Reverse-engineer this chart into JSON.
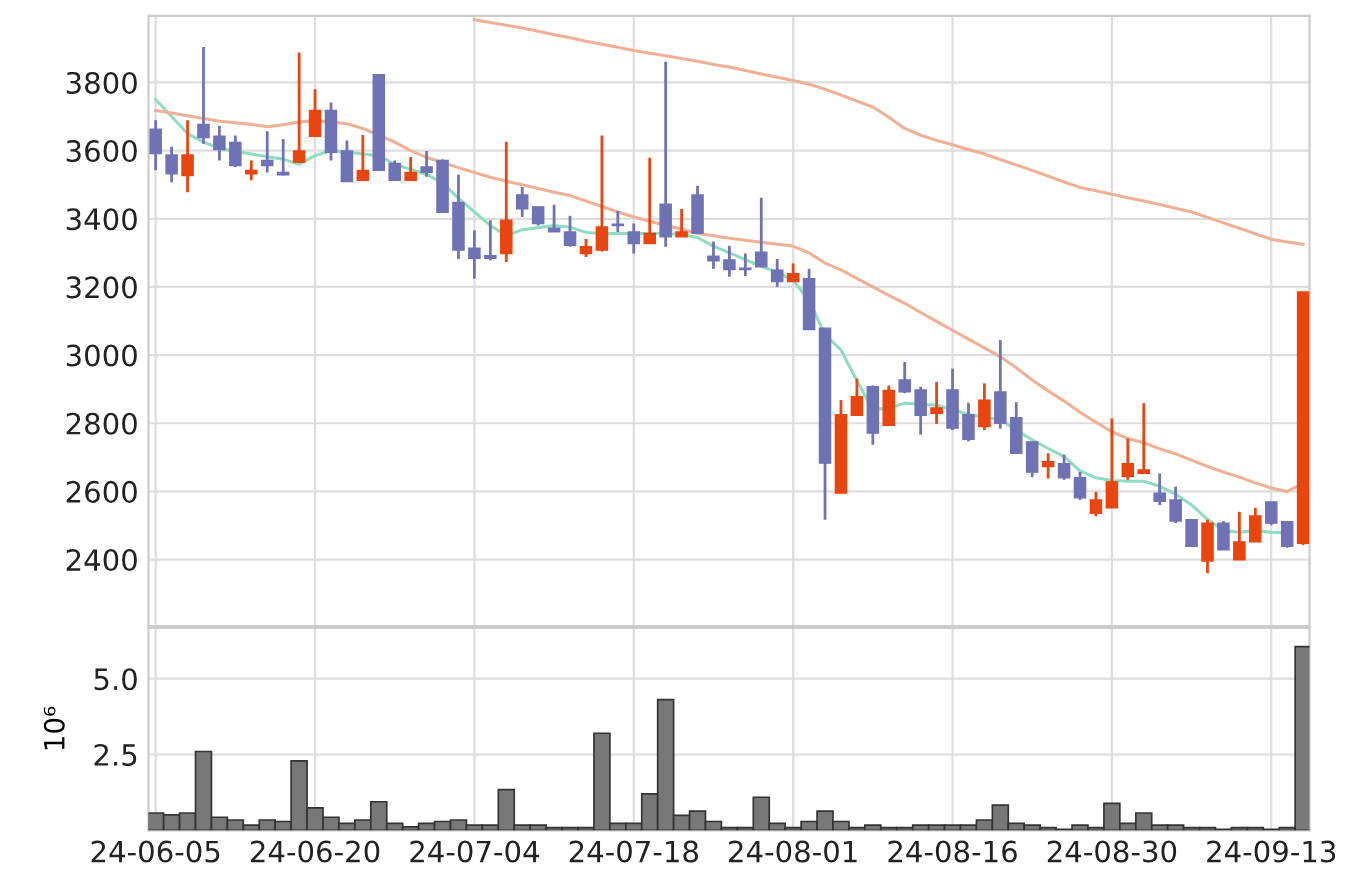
{
  "chart_data": [
    {
      "type": "candlestick",
      "categories": [
        null,
        null,
        null,
        null,
        null,
        null,
        null,
        null,
        null,
        null,
        null,
        null,
        null,
        null,
        null,
        null,
        null,
        null,
        null,
        null,
        null,
        null,
        null,
        null,
        null,
        null,
        null,
        null,
        null,
        null,
        null,
        null,
        null,
        null,
        null,
        null,
        null,
        null,
        null,
        null,
        null,
        null,
        null,
        null,
        null,
        null,
        null,
        null,
        null,
        null,
        null,
        null,
        null,
        null,
        null,
        null,
        null,
        null,
        null,
        null,
        null,
        null,
        null,
        null,
        null,
        null,
        null,
        null,
        null,
        null,
        null,
        null,
        null
      ],
      "ohlc": [
        [
          3663,
          3689,
          3542,
          3591
        ],
        [
          3587,
          3611,
          3507,
          3532
        ],
        [
          3527,
          3689,
          3478,
          3587
        ],
        [
          3677,
          3904,
          3620,
          3638
        ],
        [
          3642,
          3673,
          3571,
          3603
        ],
        [
          3624,
          3644,
          3552,
          3556
        ],
        [
          3532,
          3571,
          3513,
          3542
        ],
        [
          3571,
          3657,
          3536,
          3556
        ],
        [
          3536,
          3634,
          3527,
          3529
        ],
        [
          3566,
          3888,
          3566,
          3599
        ],
        [
          3642,
          3780,
          3642,
          3718
        ],
        [
          3718,
          3741,
          3571,
          3595
        ],
        [
          3599,
          3630,
          3509,
          3509
        ],
        [
          3513,
          3646,
          3513,
          3542
        ],
        [
          3823,
          3823,
          3542,
          3542
        ],
        [
          3562,
          3571,
          3513,
          3513
        ],
        [
          3513,
          3581,
          3513,
          3536
        ],
        [
          3552,
          3599,
          3523,
          3536
        ],
        [
          3571,
          3575,
          3419,
          3419
        ],
        [
          3448,
          3529,
          3282,
          3308
        ],
        [
          3314,
          3366,
          3224,
          3284
        ],
        [
          3292,
          3396,
          3278,
          3284
        ],
        [
          3298,
          3626,
          3273,
          3396
        ],
        [
          3470,
          3493,
          3405,
          3429
        ],
        [
          3435,
          3435,
          3380,
          3386
        ],
        [
          3372,
          3441,
          3362,
          3362
        ],
        [
          3361,
          3409,
          3318,
          3322
        ],
        [
          3298,
          3341,
          3288,
          3318
        ],
        [
          3308,
          3644,
          3304,
          3376
        ],
        [
          3384,
          3423,
          3361,
          3380
        ],
        [
          3361,
          3386,
          3298,
          3327
        ],
        [
          3327,
          3579,
          3327,
          3357
        ],
        [
          3443,
          3861,
          3318,
          3347
        ],
        [
          3347,
          3429,
          3347,
          3361
        ],
        [
          3470,
          3497,
          3357,
          3357
        ],
        [
          3290,
          3333,
          3253,
          3277
        ],
        [
          3279,
          3321,
          3230,
          3251
        ],
        [
          3255,
          3298,
          3232,
          3251
        ],
        [
          3302,
          3462,
          3259,
          3259
        ],
        [
          3249,
          3282,
          3200,
          3216
        ],
        [
          3216,
          3269,
          3216,
          3239
        ],
        [
          3224,
          3253,
          3075,
          3075
        ],
        [
          3079,
          3079,
          2517,
          2683
        ],
        [
          2595,
          2868,
          2595,
          2825
        ],
        [
          2823,
          2931,
          2823,
          2878
        ],
        [
          2907,
          2911,
          2737,
          2771
        ],
        [
          2794,
          2911,
          2794,
          2896
        ],
        [
          2927,
          2980,
          2888,
          2892
        ],
        [
          2898,
          2907,
          2767,
          2823
        ],
        [
          2829,
          2921,
          2798,
          2845
        ],
        [
          2898,
          2960,
          2780,
          2786
        ],
        [
          2825,
          2860,
          2747,
          2753
        ],
        [
          2790,
          2917,
          2780,
          2868
        ],
        [
          2892,
          3044,
          2784,
          2800
        ],
        [
          2816,
          2862,
          2712,
          2712
        ],
        [
          2745,
          2745,
          2642,
          2657
        ],
        [
          2673,
          2712,
          2638,
          2687
        ],
        [
          2681,
          2708,
          2634,
          2640
        ],
        [
          2640,
          2657,
          2575,
          2581
        ],
        [
          2536,
          2599,
          2527,
          2575
        ],
        [
          2552,
          2814,
          2552,
          2628
        ],
        [
          2644,
          2755,
          2634,
          2681
        ],
        [
          2653,
          2859,
          2653,
          2663
        ],
        [
          2595,
          2653,
          2560,
          2571
        ],
        [
          2575,
          2614,
          2507,
          2513
        ],
        [
          2517,
          2517,
          2439,
          2439
        ],
        [
          2396,
          2517,
          2360,
          2507
        ],
        [
          2507,
          2513,
          2429,
          2429
        ],
        [
          2399,
          2540,
          2399,
          2452
        ],
        [
          2452,
          2552,
          2452,
          2528
        ],
        [
          2569,
          2569,
          2501,
          2507
        ],
        [
          2511,
          2511,
          2435,
          2439
        ],
        [
          2448,
          3185,
          2443,
          3185
        ]
      ],
      "colors": [
        "#6f72b5",
        "#6f72b5",
        "#e8450f",
        "#6f72b5",
        "#6f72b5",
        "#6f72b5",
        "#e8450f",
        "#6f72b5",
        "#6f72b5",
        "#e8450f",
        "#e8450f",
        "#6f72b5",
        "#6f72b5",
        "#e8450f",
        "#6f72b5",
        "#6f72b5",
        "#e8450f",
        "#6f72b5",
        "#6f72b5",
        "#6f72b5",
        "#6f72b5",
        "#6f72b5",
        "#e8450f",
        "#6f72b5",
        "#6f72b5",
        "#6f72b5",
        "#6f72b5",
        "#e8450f",
        "#e8450f",
        "#6f72b5",
        "#6f72b5",
        "#e8450f",
        "#6f72b5",
        "#e8450f",
        "#6f72b5",
        "#6f72b5",
        "#6f72b5",
        "#6f72b5",
        "#6f72b5",
        "#6f72b5",
        "#e8450f",
        "#6f72b5",
        "#6f72b5",
        "#e8450f",
        "#e8450f",
        "#6f72b5",
        "#e8450f",
        "#6f72b5",
        "#6f72b5",
        "#e8450f",
        "#6f72b5",
        "#6f72b5",
        "#e8450f",
        "#6f72b5",
        "#6f72b5",
        "#6f72b5",
        "#e8450f",
        "#6f72b5",
        "#6f72b5",
        "#e8450f",
        "#e8450f",
        "#e8450f",
        "#e8450f",
        "#6f72b5",
        "#6f72b5",
        "#6f72b5",
        "#e8450f",
        "#6f72b5",
        "#e8450f",
        "#e8450f",
        "#6f72b5",
        "#6f72b5",
        "#e8450f"
      ],
      "series": [
        {
          "type": "line",
          "color": "#8fdcc0",
          "values": [
            3750,
            3700,
            3650,
            3625,
            3607,
            3598,
            3590,
            3582,
            3575,
            3560,
            3585,
            3600,
            3596,
            3590,
            3585,
            3560,
            3545,
            3530,
            3505,
            3460,
            3420,
            3380,
            3350,
            3368,
            3374,
            3380,
            3375,
            3360,
            3357,
            3357,
            3357,
            3357,
            3357,
            3354,
            3345,
            3320,
            3300,
            3280,
            3260,
            3243,
            3220,
            3160,
            3060,
            3015,
            2925,
            2840,
            2845,
            2859,
            2856,
            2853,
            2840,
            2826,
            2818,
            2810,
            2780,
            2751,
            2726,
            2702,
            2660,
            2640,
            2632,
            2630,
            2630,
            2615,
            2592,
            2560,
            2518,
            2485,
            2480,
            2485,
            2480,
            2478,
            null
          ]
        },
        {
          "type": "line",
          "color": "#f0b095",
          "values": [
            3718,
            3710,
            3702,
            3694,
            3686,
            3682,
            3677,
            3670,
            3676,
            3684,
            3688,
            3684,
            3679,
            3665,
            3645,
            3625,
            3600,
            3580,
            3565,
            3550,
            3536,
            3522,
            3510,
            3500,
            3489,
            3478,
            3468,
            3452,
            3436,
            3420,
            3405,
            3393,
            3381,
            3369,
            3357,
            3350,
            3343,
            3337,
            3331,
            3325,
            3320,
            3300,
            3270,
            3250,
            3225,
            3200,
            3175,
            3152,
            3125,
            3099,
            3073,
            3047,
            3021,
            2995,
            2963,
            2927,
            2895,
            2865,
            2832,
            2803,
            2775,
            2755,
            2743,
            2725,
            2710,
            2692,
            2673,
            2657,
            2642,
            2625,
            2610,
            2600,
            2624
          ]
        },
        {
          "type": "line",
          "color": "#f0b095",
          "values": [
            null,
            null,
            null,
            null,
            null,
            null,
            null,
            null,
            null,
            null,
            null,
            null,
            null,
            null,
            null,
            null,
            null,
            null,
            null,
            null,
            3984,
            3976,
            3968,
            3960,
            3950,
            3940,
            3931,
            3921,
            3912,
            3903,
            3894,
            3886,
            3878,
            3870,
            3862,
            3853,
            3845,
            3835,
            3825,
            3815,
            3806,
            3795,
            3780,
            3763,
            3745,
            3728,
            3698,
            3665,
            3645,
            3630,
            3617,
            3603,
            3590,
            3574,
            3558,
            3542,
            3525,
            3508,
            3492,
            3482,
            3472,
            3462,
            3452,
            3442,
            3431,
            3420,
            3404,
            3388,
            3372,
            3356,
            3340,
            3332,
            3325
          ]
        }
      ],
      "ylim": [
        2205,
        3995
      ],
      "yticks": [
        2400,
        2600,
        2800,
        3000,
        3200,
        3400,
        3600,
        3800
      ],
      "grid": true,
      "tick_labels": "y"
    },
    {
      "type": "bar",
      "ylabel": "10⁶",
      "categories": [
        "24-06-05",
        null,
        null,
        null,
        null,
        null,
        null,
        null,
        null,
        null,
        "24-06-20",
        null,
        null,
        null,
        null,
        null,
        null,
        null,
        null,
        null,
        "24-07-04",
        null,
        null,
        null,
        null,
        null,
        null,
        null,
        null,
        null,
        "24-07-18",
        null,
        null,
        null,
        null,
        null,
        null,
        null,
        null,
        null,
        "24-08-01",
        null,
        null,
        null,
        null,
        null,
        null,
        null,
        null,
        null,
        "24-08-16",
        null,
        null,
        null,
        null,
        null,
        null,
        null,
        null,
        null,
        "24-08-30",
        null,
        null,
        null,
        null,
        null,
        null,
        null,
        null,
        null,
        "24-09-13",
        null,
        null
      ],
      "values": [
        0.57,
        0.51,
        0.57,
        2.6,
        0.43,
        0.34,
        0.17,
        0.34,
        0.29,
        2.29,
        0.74,
        0.43,
        0.23,
        0.34,
        0.94,
        0.23,
        0.11,
        0.23,
        0.29,
        0.34,
        0.17,
        0.17,
        1.34,
        0.17,
        0.17,
        0.09,
        0.09,
        0.09,
        3.2,
        0.23,
        0.23,
        1.2,
        4.31,
        0.49,
        0.63,
        0.29,
        0.09,
        0.09,
        1.09,
        0.23,
        0.09,
        0.29,
        0.63,
        0.29,
        0.09,
        0.17,
        0.09,
        0.09,
        0.17,
        0.17,
        0.17,
        0.17,
        0.34,
        0.83,
        0.23,
        0.17,
        0.09,
        0.03,
        0.17,
        0.09,
        0.89,
        0.23,
        0.57,
        0.17,
        0.17,
        0.09,
        0.09,
        0.03,
        0.09,
        0.09,
        0.03,
        0.09,
        6.06
      ],
      "color": "#787878",
      "ylim": [
        0,
        6.68
      ],
      "yticks": [
        2.5,
        {
          "value": 5,
          "label": "5.0"
        }
      ],
      "grid": true
    }
  ]
}
